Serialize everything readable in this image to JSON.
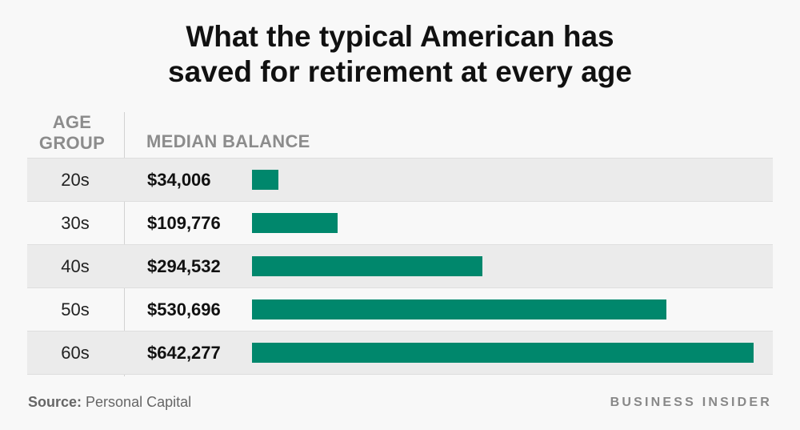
{
  "title": {
    "line1": "What the typical American has",
    "line2": "saved for retirement at every age"
  },
  "headers": {
    "age_line1": "AGE",
    "age_line2": "GROUP",
    "balance": "MEDIAN BALANCE"
  },
  "chart_data": {
    "type": "bar",
    "orientation": "horizontal",
    "categories": [
      "20s",
      "30s",
      "40s",
      "50s",
      "60s"
    ],
    "values": [
      34006,
      109776,
      294532,
      530696,
      642277
    ],
    "value_labels": [
      "$34,006",
      "$109,776",
      "$294,532",
      "$530,696",
      "$642,277"
    ],
    "title": "What the typical American has saved for retirement at every age",
    "xlabel": "",
    "ylabel": "",
    "bar_color": "#00876c",
    "grid": false,
    "legend": "none"
  },
  "footer": {
    "source_label": "Source:",
    "source_text": " Personal Capital",
    "brand": "BUSINESS INSIDER"
  }
}
